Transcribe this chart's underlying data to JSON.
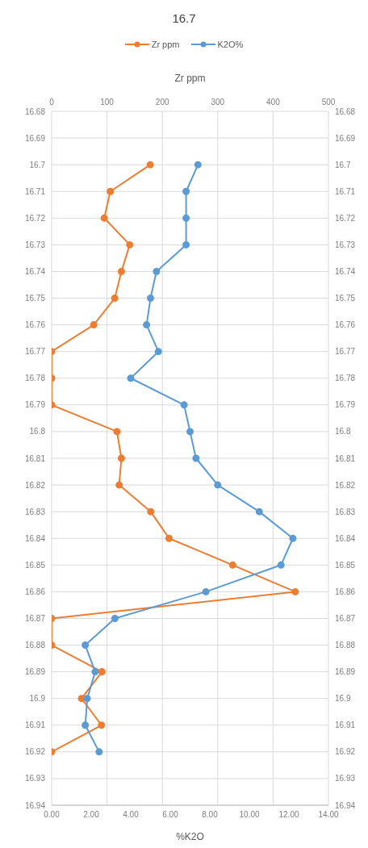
{
  "chart_data": {
    "type": "line",
    "title": "16.7",
    "orientation": "horizontal",
    "xlabel": "%K2O",
    "x2label": "Zr ppm",
    "x": [
      16.7,
      16.71,
      16.72,
      16.73,
      16.74,
      16.75,
      16.76,
      16.77,
      16.78,
      16.79,
      16.8,
      16.81,
      16.82,
      16.83,
      16.84,
      16.85,
      16.86,
      16.87,
      16.88,
      16.89,
      16.9,
      16.91,
      16.92
    ],
    "series": [
      {
        "name": "Zr ppm",
        "color": "#ed7d31",
        "axis": "x2",
        "values": [
          178,
          106,
          95,
          141,
          126,
          114,
          76,
          0,
          0,
          0,
          118,
          126,
          122,
          179,
          212,
          327,
          440,
          0,
          0,
          91,
          54,
          90,
          0
        ]
      },
      {
        "name": "K2O%",
        "color": "#5b9bd5",
        "values": [
          7.4,
          6.8,
          6.8,
          6.8,
          5.3,
          5.0,
          4.8,
          5.4,
          4.0,
          6.7,
          7.0,
          7.3,
          8.4,
          10.5,
          12.2,
          11.6,
          7.8,
          3.2,
          1.7,
          2.2,
          1.8,
          1.7,
          2.4
        ]
      }
    ],
    "xlim": [
      0,
      14
    ],
    "xticks": [
      {
        "value": 0,
        "label": "0.00"
      },
      {
        "value": 2,
        "label": "2.00"
      },
      {
        "value": 4,
        "label": "4.00"
      },
      {
        "value": 6,
        "label": "6.00"
      },
      {
        "value": 8,
        "label": "8.00"
      },
      {
        "value": 10,
        "label": "10.00"
      },
      {
        "value": 12,
        "label": "12.00"
      },
      {
        "value": 14,
        "label": "14.00"
      }
    ],
    "x2lim": [
      0,
      500
    ],
    "x2ticks": [
      0,
      100,
      200,
      300,
      400,
      500
    ],
    "ylim": [
      16.94,
      16.68
    ],
    "yticks": [
      16.68,
      16.69,
      16.7,
      16.71,
      16.72,
      16.73,
      16.74,
      16.75,
      16.76,
      16.77,
      16.78,
      16.79,
      16.8,
      16.81,
      16.82,
      16.83,
      16.84,
      16.85,
      16.86,
      16.87,
      16.88,
      16.89,
      16.9,
      16.91,
      16.92,
      16.93,
      16.94
    ],
    "y2lim": [
      16.94,
      16.68
    ],
    "y2ticks": [
      16.68,
      16.69,
      16.7,
      16.71,
      16.72,
      16.73,
      16.74,
      16.75,
      16.76,
      16.77,
      16.78,
      16.79,
      16.8,
      16.81,
      16.82,
      16.83,
      16.84,
      16.85,
      16.86,
      16.87,
      16.88,
      16.89,
      16.9,
      16.91,
      16.92,
      16.93,
      16.94
    ],
    "grid": true,
    "legend": "top",
    "marker": "circle",
    "line_style": "solid"
  }
}
